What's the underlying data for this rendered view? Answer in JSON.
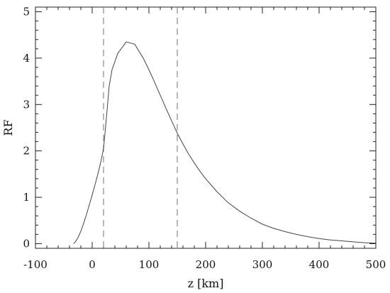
{
  "chart_data": {
    "type": "line",
    "title": "",
    "xlabel": "z [km]",
    "ylabel": "RF",
    "xlim": [
      -100,
      500
    ],
    "ylim": [
      -0.1,
      5.1
    ],
    "x_ticks": [
      -100,
      0,
      100,
      200,
      300,
      400,
      500
    ],
    "x_tick_labels": [
      "-100",
      "0",
      "100",
      "200",
      "300",
      "400",
      "500"
    ],
    "y_ticks": [
      0,
      1,
      2,
      3,
      4,
      5
    ],
    "y_tick_labels": [
      "0",
      "1",
      "2",
      "3",
      "4",
      "5"
    ],
    "grid": false,
    "series": [
      {
        "color": "#444444",
        "x": [
          -33,
          -29,
          -25,
          -20,
          -15,
          -10,
          -5,
          0,
          5,
          10,
          15,
          20,
          25,
          30,
          35,
          45,
          60,
          75,
          90,
          100,
          110,
          120,
          130,
          140,
          150,
          160,
          170,
          180,
          190,
          200,
          220,
          240,
          260,
          280,
          300,
          320,
          340,
          360,
          380,
          400,
          420,
          440,
          460,
          480,
          500
        ],
        "y": [
          0.0,
          0.05,
          0.13,
          0.27,
          0.44,
          0.63,
          0.84,
          1.05,
          1.27,
          1.5,
          1.75,
          2.05,
          2.7,
          3.4,
          3.75,
          4.1,
          4.35,
          4.3,
          4.0,
          3.75,
          3.48,
          3.2,
          2.92,
          2.65,
          2.38,
          2.15,
          1.93,
          1.74,
          1.56,
          1.4,
          1.12,
          0.88,
          0.7,
          0.55,
          0.42,
          0.33,
          0.26,
          0.2,
          0.15,
          0.11,
          0.08,
          0.06,
          0.04,
          0.02,
          0.01
        ]
      }
    ],
    "vertical_lines": [
      {
        "x": 20,
        "style": "dashed",
        "color": "#888888"
      },
      {
        "x": 150,
        "style": "dashed",
        "color": "#888888"
      }
    ]
  }
}
